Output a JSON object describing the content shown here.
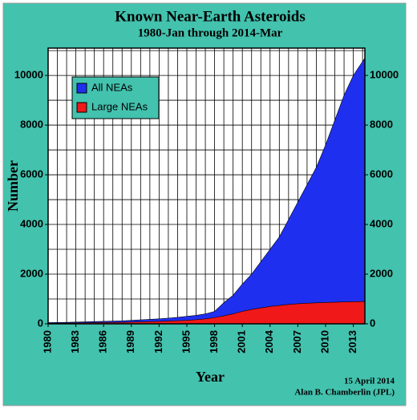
{
  "chart_data": {
    "type": "area",
    "title": "Known Near-Earth Asteroids",
    "subtitle": "1980-Jan through 2014-Mar",
    "xlabel": "Year",
    "ylabel": "Number",
    "annotations": [
      "15 April 2014",
      "Alan B. Chamberlin (JPL)"
    ],
    "x": [
      1980,
      1981,
      1982,
      1983,
      1984,
      1985,
      1986,
      1987,
      1988,
      1989,
      1990,
      1991,
      1992,
      1993,
      1994,
      1995,
      1996,
      1997,
      1998,
      1999,
      2000,
      2001,
      2002,
      2003,
      2004,
      2005,
      2006,
      2007,
      2008,
      2009,
      2010,
      2011,
      2012,
      2013,
      2014.25
    ],
    "series": [
      {
        "name": "All NEAs",
        "color": "#1f2ff0",
        "values": [
          50,
          55,
          60,
          70,
          80,
          90,
          100,
          110,
          120,
          140,
          160,
          180,
          200,
          230,
          260,
          300,
          340,
          400,
          500,
          850,
          1150,
          1600,
          2000,
          2500,
          3000,
          3500,
          4200,
          4900,
          5600,
          6300,
          7200,
          8200,
          9200,
          10000,
          10700
        ]
      },
      {
        "name": "Large NEAs",
        "color": "#f01818",
        "values": [
          20,
          25,
          30,
          35,
          40,
          45,
          50,
          55,
          60,
          70,
          80,
          90,
          100,
          110,
          125,
          140,
          165,
          200,
          250,
          320,
          400,
          500,
          580,
          640,
          700,
          740,
          780,
          810,
          830,
          845,
          860,
          870,
          880,
          890,
          900
        ]
      }
    ],
    "xlim": [
      1980,
      2014.25
    ],
    "xticks": [
      1980,
      1983,
      1986,
      1989,
      1992,
      1995,
      1998,
      2001,
      2004,
      2007,
      2010,
      2013
    ],
    "x_minor_step": 1,
    "ylim": [
      0,
      11100
    ],
    "yticks": [
      0,
      2000,
      4000,
      6000,
      8000,
      10000
    ],
    "y_minor_step": 1000,
    "right_axis": true,
    "grid": true,
    "legend": "upper left"
  }
}
